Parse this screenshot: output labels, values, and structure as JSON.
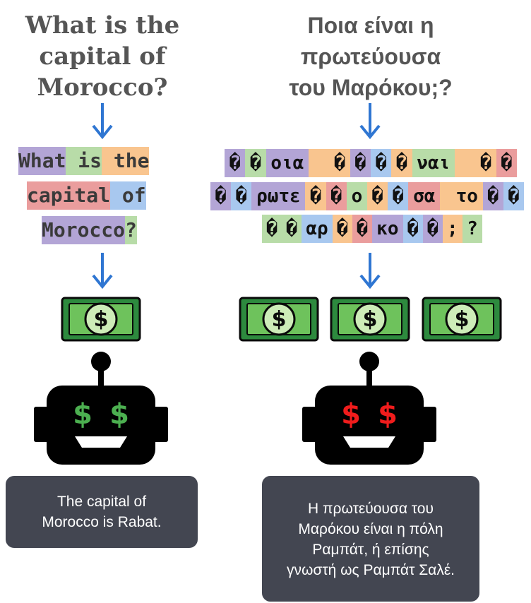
{
  "left": {
    "question_lines": [
      "What is the",
      "capital of",
      "Morocco?"
    ],
    "token_rows": [
      [
        {
          "t": "What",
          "c": "purple"
        },
        {
          "t": " is",
          "c": "green"
        },
        {
          "t": " the",
          "c": "orange"
        }
      ],
      [
        {
          "t": "capital",
          "c": "red"
        },
        {
          "t": " of",
          "c": "blue"
        }
      ],
      [
        {
          "t": "Morocco",
          "c": "purple"
        },
        {
          "t": "?",
          "c": "green"
        }
      ]
    ],
    "answer_lines": [
      "The capital of",
      "Morocco is Rabat."
    ],
    "eye_symbol": "$",
    "eye_color": "#4caf50"
  },
  "right": {
    "question_lines": [
      "Ποια είναι η",
      "πρωτεύουσα",
      "του Μαρόκου;?"
    ],
    "token_rows": [
      [
        {
          "t": "�",
          "c": "purple"
        },
        {
          "t": "�",
          "c": "green"
        },
        {
          "t": "οια",
          "c": "purple"
        },
        {
          "t": " ",
          "c": "orange"
        },
        {
          "t": "�",
          "c": "orange"
        },
        {
          "t": "�",
          "c": "purple"
        },
        {
          "t": "�",
          "c": "blue"
        },
        {
          "t": "�",
          "c": "orange"
        },
        {
          "t": "ναι",
          "c": "green"
        },
        {
          "t": " ",
          "c": "orange"
        },
        {
          "t": "�",
          "c": "orange"
        },
        {
          "t": "�",
          "c": "red"
        }
      ],
      [
        {
          "t": "�",
          "c": "purple"
        },
        {
          "t": "�",
          "c": "blue"
        },
        {
          "t": "ρωτε",
          "c": "purple"
        },
        {
          "t": "�",
          "c": "orange"
        },
        {
          "t": "�",
          "c": "red"
        },
        {
          "t": "ο",
          "c": "green"
        },
        {
          "t": "�",
          "c": "orange"
        },
        {
          "t": "�",
          "c": "blue"
        },
        {
          "t": "σα",
          "c": "red"
        },
        {
          "t": " το",
          "c": "orange"
        },
        {
          "t": "�",
          "c": "purple"
        },
        {
          "t": "�",
          "c": "blue"
        }
      ],
      [
        {
          "t": "�",
          "c": "green"
        },
        {
          "t": "�",
          "c": "green"
        },
        {
          "t": "αρ",
          "c": "blue"
        },
        {
          "t": "�",
          "c": "orange"
        },
        {
          "t": "�",
          "c": "red"
        },
        {
          "t": "κο",
          "c": "purple"
        },
        {
          "t": "�",
          "c": "blue"
        },
        {
          "t": "�",
          "c": "purple"
        },
        {
          "t": ";",
          "c": "orange"
        },
        {
          "t": "?",
          "c": "green"
        }
      ]
    ],
    "answer_lines": [
      "Η πρωτεύουσα του",
      "Μαρόκου είναι η πόλη",
      "Ραμπάτ, ή επίσης",
      "γνωστή ως Ραμπάτ Σαλέ."
    ],
    "eye_symbol": "$",
    "eye_color": "#f01c1c"
  },
  "colors": {
    "arrow": "#2f76d2",
    "bill_dark": "#2d8a3e",
    "bill_light": "#6ec25c",
    "bill_circle": "#cdecb8",
    "robot": "#000000",
    "bubble": "#434651"
  },
  "icons": [
    "down-arrow-icon",
    "money-bill-icon",
    "robot-icon",
    "dollar-sign-icon"
  ]
}
